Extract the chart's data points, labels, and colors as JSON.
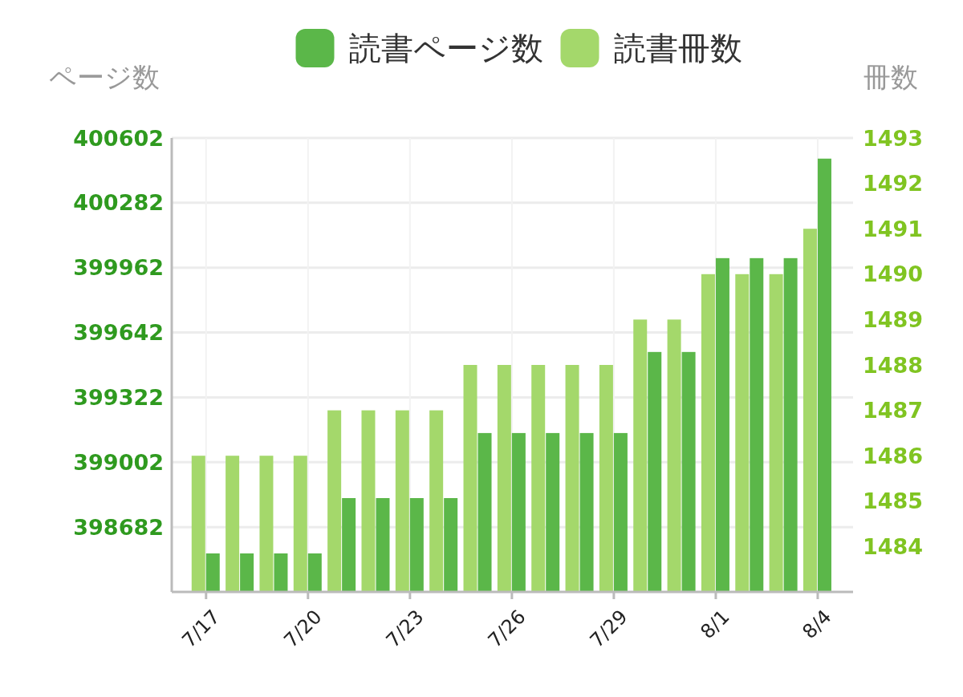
{
  "chart_data": {
    "type": "bar",
    "ylabel": "ページ数",
    "y2label": "冊数",
    "legend": "top",
    "grid": true,
    "categories": [
      "7/17",
      null,
      null,
      "7/20",
      null,
      null,
      "7/23",
      null,
      null,
      "7/26",
      null,
      null,
      "7/29",
      null,
      null,
      "8/1",
      null,
      null,
      "8/4"
    ],
    "series": [
      {
        "name": "読書ページ数",
        "color": "#5bb749",
        "axis": "y",
        "values": [
          398552,
          398552,
          398552,
          398552,
          398825,
          398825,
          398825,
          398825,
          399146,
          399146,
          399146,
          399146,
          399146,
          399546,
          399546,
          400009,
          400009,
          400009,
          400500
        ]
      },
      {
        "name": "読書冊数",
        "color": "#a4d86b",
        "axis": "y2",
        "values": [
          1486,
          1486,
          1486,
          1486,
          1487,
          1487,
          1487,
          1487,
          1488,
          1488,
          1488,
          1488,
          1488,
          1489,
          1489,
          1490,
          1490,
          1490,
          1491
        ]
      }
    ],
    "ylim": [
      398362,
      400602
    ],
    "yticks": [
      398682,
      399002,
      399322,
      399642,
      399962,
      400282,
      400602
    ],
    "y2lim": [
      1483,
      1493
    ],
    "y2ticks": [
      1484,
      1485,
      1486,
      1487,
      1488,
      1489,
      1490,
      1491,
      1492,
      1493
    ]
  }
}
